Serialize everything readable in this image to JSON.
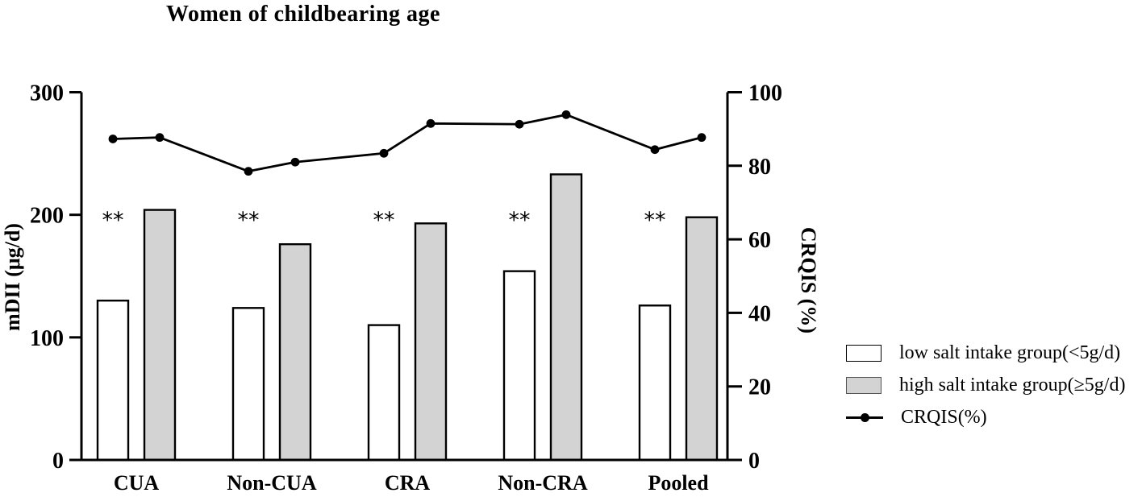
{
  "chart_data": {
    "type": "bar",
    "subtype": "grouped-bars-with-line-overlay",
    "title": "Women of childbearing age",
    "categories": [
      "CUA",
      "Non-CUA",
      "CRA",
      "Non-CRA",
      "Pooled"
    ],
    "bar_series": [
      {
        "name": "low salt intake group(<5g/d)",
        "fill": "#ffffff",
        "values": [
          130,
          124,
          110,
          154,
          126
        ]
      },
      {
        "name": "high salt intake group(≥5g/d)",
        "fill": "#d3d3d3",
        "values": [
          204,
          176,
          193,
          233,
          198
        ]
      }
    ],
    "line_series": {
      "name": "CRQIS(%)",
      "axis": "right",
      "color": "#000000",
      "values": [
        87.3,
        87.7,
        78.5,
        81.0,
        83.4,
        91.5,
        91.3,
        93.9,
        84.4,
        87.7
      ]
    },
    "left_axis": {
      "label": "mDII (μg/d)",
      "range": [
        0,
        300
      ],
      "ticks": [
        0,
        100,
        200,
        300
      ]
    },
    "right_axis": {
      "label": "CRQIS (%)",
      "range": [
        0,
        100
      ],
      "ticks": [
        0,
        20,
        40,
        60,
        80,
        100
      ]
    },
    "significance": {
      "marker": "**",
      "applies_to": [
        "CUA",
        "Non-CUA",
        "CRA",
        "Non-CRA",
        "Pooled"
      ]
    },
    "legend": {
      "items": [
        {
          "swatch": "box-white",
          "label": "low salt intake group(<5g/d)"
        },
        {
          "swatch": "box-gray",
          "label": "high salt intake group(≥5g/d)"
        },
        {
          "swatch": "line-dot",
          "label": "CRQIS(%)"
        }
      ]
    },
    "grid": false,
    "legend_position": "outside-right-bottom"
  }
}
